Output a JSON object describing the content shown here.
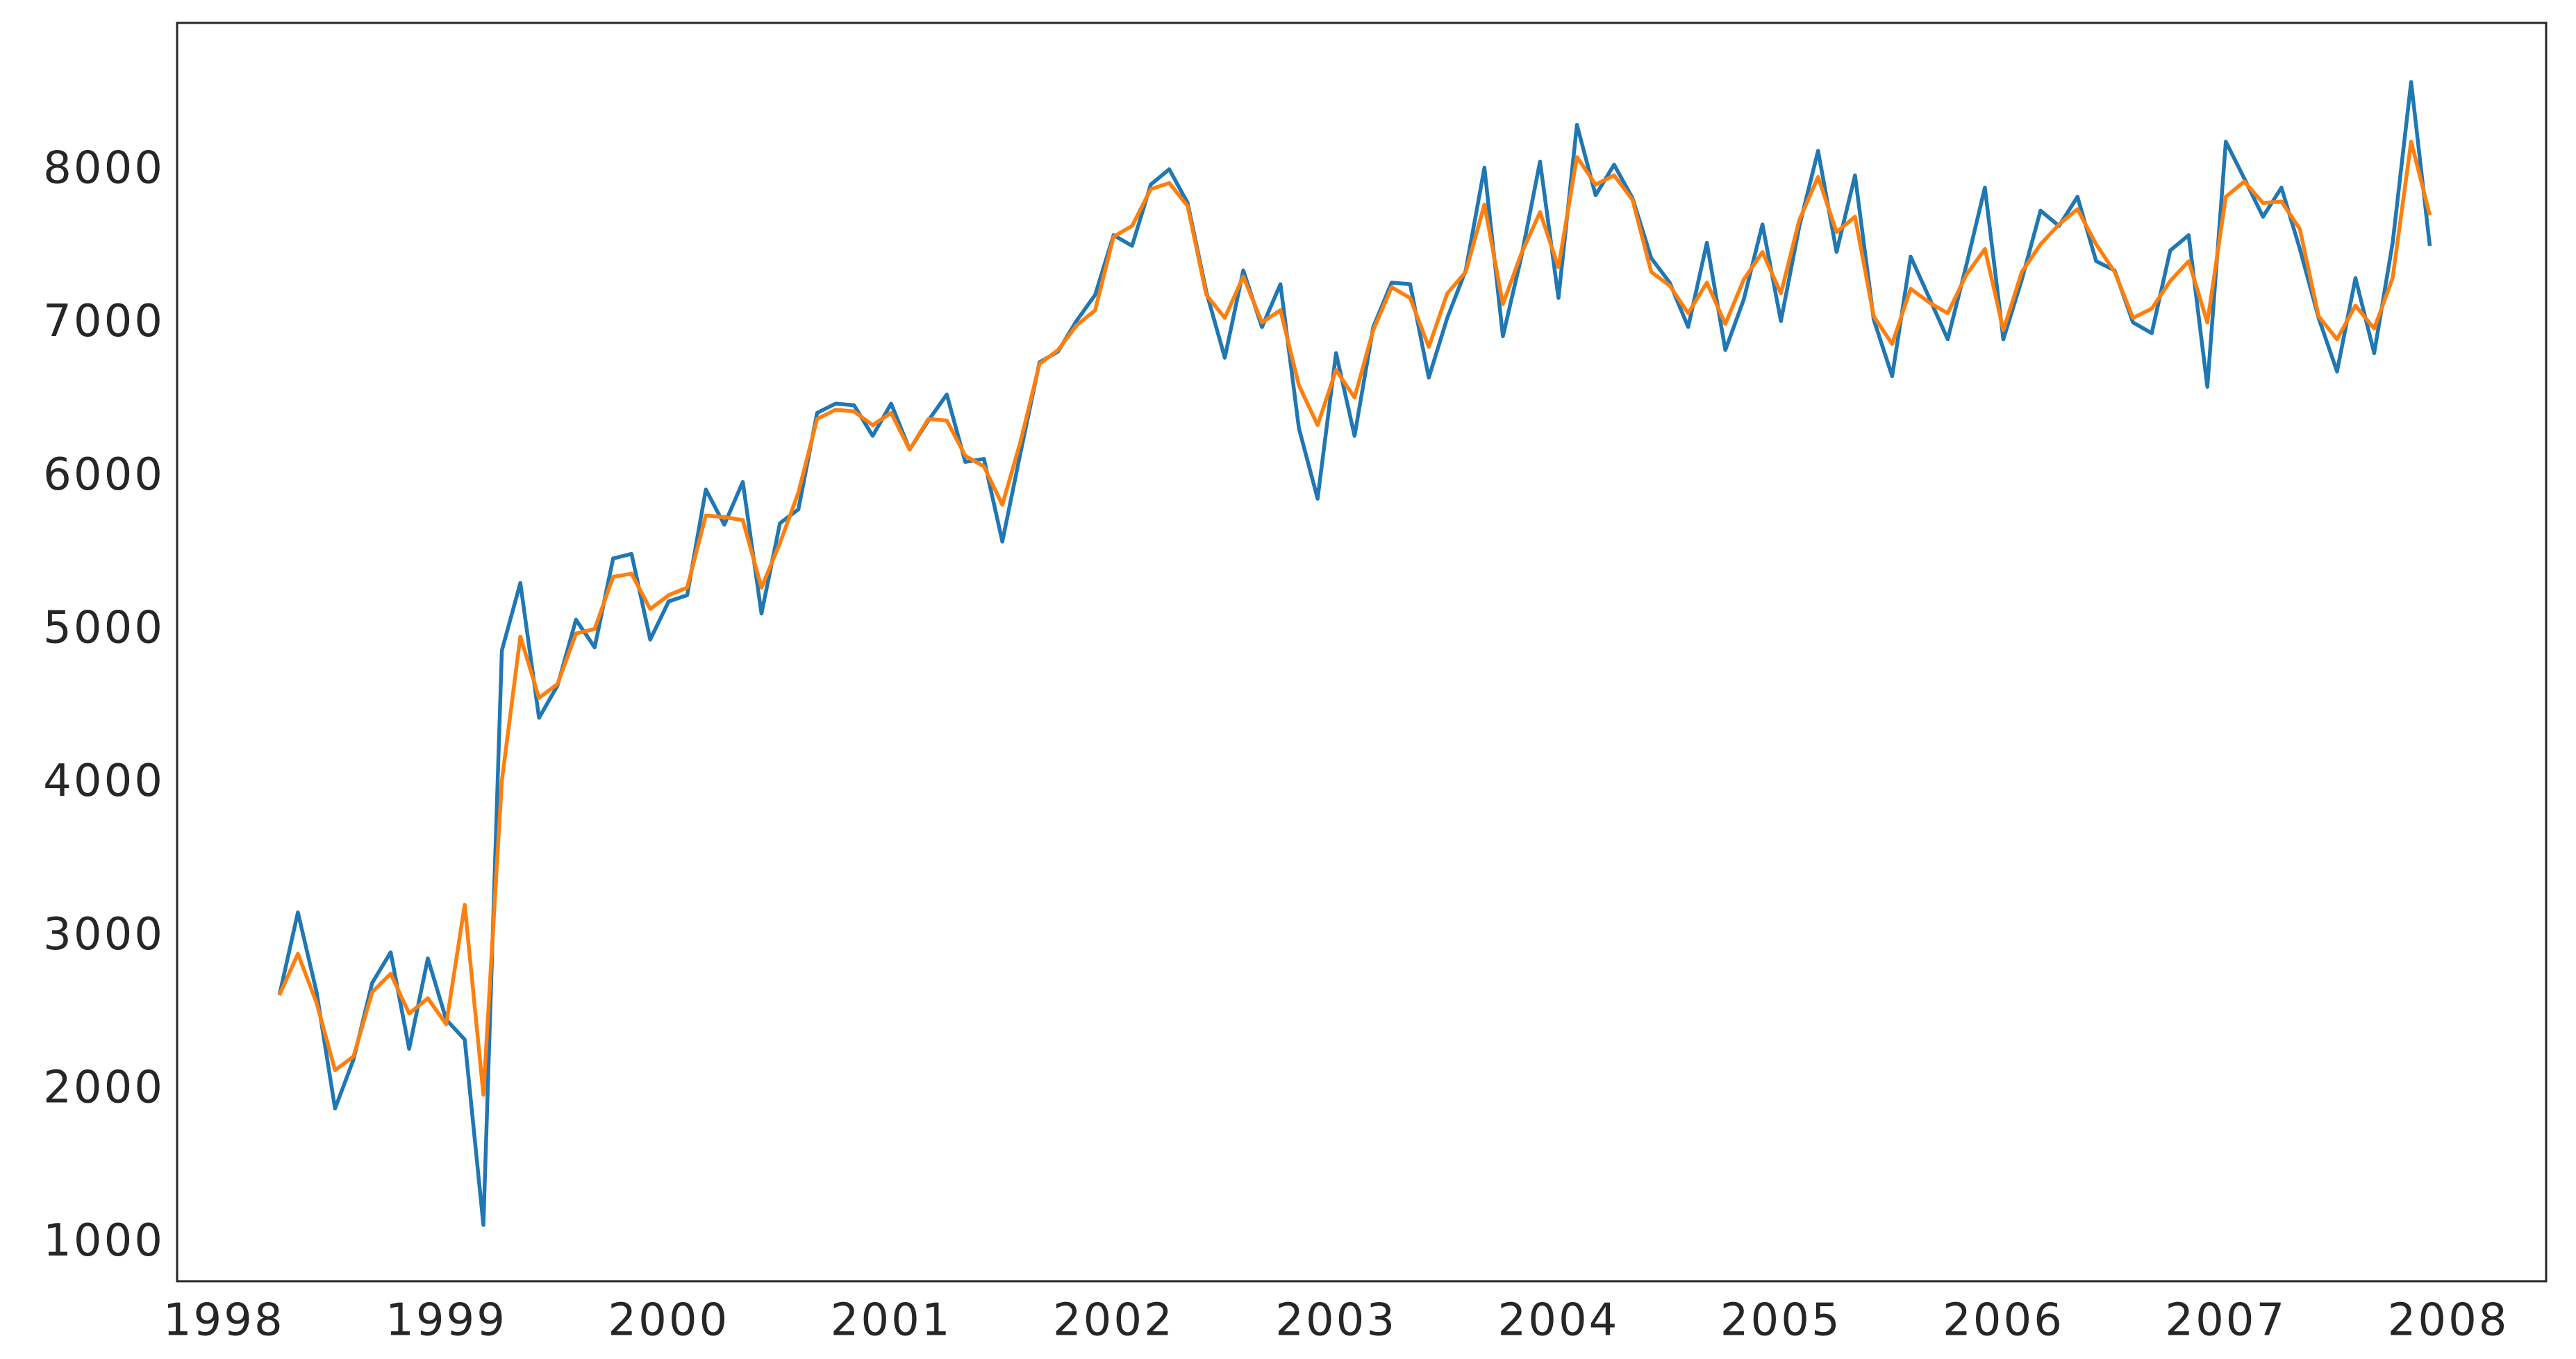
{
  "chart_data": {
    "type": "line",
    "x": [
      1998.25,
      1998.333,
      1998.417,
      1998.5,
      1998.583,
      1998.667,
      1998.75,
      1998.833,
      1998.917,
      1999,
      1999.083,
      1999.167,
      1999.25,
      1999.333,
      1999.417,
      1999.5,
      1999.583,
      1999.667,
      1999.75,
      1999.833,
      1999.917,
      2000,
      2000.083,
      2000.167,
      2000.25,
      2000.333,
      2000.417,
      2000.5,
      2000.583,
      2000.667,
      2000.75,
      2000.833,
      2000.917,
      2001,
      2001.083,
      2001.167,
      2001.25,
      2001.333,
      2001.417,
      2001.5,
      2001.583,
      2001.667,
      2001.75,
      2001.833,
      2001.917,
      2002,
      2002.083,
      2002.167,
      2002.25,
      2002.333,
      2002.417,
      2002.5,
      2002.583,
      2002.667,
      2002.75,
      2002.833,
      2002.917,
      2003,
      2003.083,
      2003.167,
      2003.25,
      2003.333,
      2003.417,
      2003.5,
      2003.583,
      2003.667,
      2003.75,
      2003.833,
      2003.917,
      2004,
      2004.083,
      2004.167,
      2004.25,
      2004.333,
      2004.417,
      2004.5,
      2004.583,
      2004.667,
      2004.75,
      2004.833,
      2004.917,
      2005,
      2005.083,
      2005.167,
      2005.25,
      2005.333,
      2005.417,
      2005.5,
      2005.583,
      2005.667,
      2005.75,
      2005.833,
      2005.917,
      2006,
      2006.083,
      2006.167,
      2006.25,
      2006.333,
      2006.417,
      2006.5,
      2006.583,
      2006.667,
      2006.75,
      2006.833,
      2006.917,
      2007,
      2007.083,
      2007.167,
      2007.25,
      2007.333,
      2007.417,
      2007.5,
      2007.583,
      2007.667,
      2007.75,
      2007.833,
      2007.917
    ],
    "series": [
      {
        "color": "#1f77b4",
        "values": [
          2620,
          3160,
          2640,
          1880,
          2200,
          2700,
          2900,
          2270,
          2860,
          2460,
          2330,
          1120,
          4870,
          5310,
          4430,
          4640,
          5070,
          4890,
          5470,
          5500,
          4940,
          5190,
          5230,
          5920,
          5690,
          5970,
          5110,
          5700,
          5790,
          6420,
          6480,
          6470,
          6270,
          6480,
          6180,
          6370,
          6540,
          6100,
          6120,
          5580,
          6170,
          6750,
          6820,
          7020,
          7190,
          7580,
          7510,
          7910,
          8010,
          7790,
          7210,
          6780,
          7350,
          6980,
          7260,
          6320,
          5860,
          6810,
          6270,
          6980,
          7270,
          7260,
          6650,
          7040,
          7350,
          8020,
          6920,
          7440,
          8060,
          7170,
          8300,
          7840,
          8040,
          7820,
          7430,
          7270,
          6980,
          7530,
          6830,
          7160,
          7650,
          7020,
          7640,
          8130,
          7470,
          7970,
          7030,
          6660,
          7440,
          7170,
          6900,
          7380,
          7890,
          6900,
          7290,
          7740,
          7640,
          7830,
          7410,
          7350,
          7010,
          6940,
          7480,
          7580,
          6590,
          8190,
          7950,
          7700,
          7890,
          7490,
          7040,
          6690,
          7300,
          6810,
          7530,
          8580,
          7510
        ]
      },
      {
        "color": "#ff7f0e",
        "values": [
          2620,
          2890,
          2570,
          2130,
          2220,
          2640,
          2760,
          2500,
          2600,
          2430,
          3210,
          1970,
          4020,
          4960,
          4560,
          4650,
          4980,
          5010,
          5350,
          5370,
          5140,
          5230,
          5280,
          5750,
          5740,
          5720,
          5280,
          5570,
          5900,
          6380,
          6440,
          6430,
          6340,
          6420,
          6180,
          6380,
          6370,
          6140,
          6070,
          5820,
          6240,
          6740,
          6830,
          6990,
          7090,
          7570,
          7640,
          7880,
          7920,
          7770,
          7190,
          7040,
          7310,
          7010,
          7090,
          6600,
          6340,
          6700,
          6520,
          6960,
          7240,
          7170,
          6850,
          7200,
          7340,
          7780,
          7130,
          7460,
          7730,
          7370,
          8090,
          7910,
          7970,
          7810,
          7340,
          7250,
          7070,
          7270,
          7000,
          7290,
          7470,
          7200,
          7680,
          7960,
          7600,
          7700,
          7050,
          6870,
          7230,
          7140,
          7070,
          7320,
          7490,
          6960,
          7340,
          7520,
          7650,
          7750,
          7520,
          7340,
          7040,
          7100,
          7280,
          7410,
          7010,
          7830,
          7930,
          7790,
          7800,
          7620,
          7050,
          6900,
          7120,
          6970,
          7300,
          8190,
          7710
        ]
      }
    ],
    "xlim": [
      1997.79,
      2008.44
    ],
    "xticks": [
      1998,
      1999,
      2000,
      2001,
      2002,
      2003,
      2004,
      2005,
      2006,
      2007,
      2008
    ],
    "ylim": [
      753,
      8965
    ],
    "yticks": [
      1000,
      2000,
      3000,
      4000,
      5000,
      6000,
      7000,
      8000
    ],
    "grid": false
  }
}
